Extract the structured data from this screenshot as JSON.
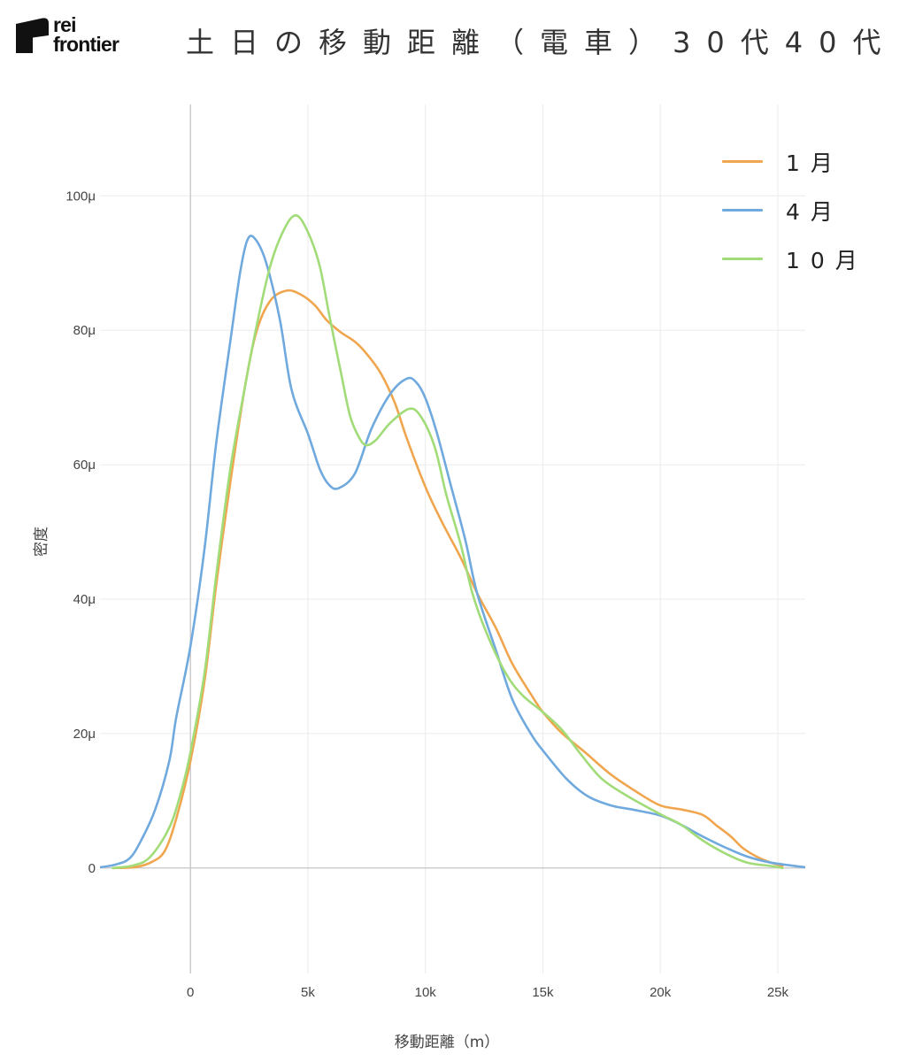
{
  "logo": {
    "line1": "rei",
    "line2": "frontier"
  },
  "chart_data": {
    "type": "line",
    "title": "土日の移動距離（電車）30代40代",
    "xlabel": "移動距離（m）",
    "ylabel": "密度",
    "xlim": [
      -3850,
      26170
    ],
    "ylim": [
      -1.57e-05,
      0.0001136
    ],
    "xticks": {
      "values": [
        0,
        5000,
        10000,
        15000,
        20000,
        25000
      ],
      "labels": [
        "0",
        "5k",
        "10k",
        "15k",
        "20k",
        "25k"
      ]
    },
    "yticks": {
      "values": [
        0,
        2e-05,
        4e-05,
        6e-05,
        8e-05,
        0.0001
      ],
      "labels": [
        "0",
        "20μ",
        "40μ",
        "60μ",
        "80μ",
        "100μ"
      ]
    },
    "grid": true,
    "legend_position": "top-right",
    "series": [
      {
        "name": "1月",
        "color": "#F0A64F",
        "x": [
          -3300,
          -2400,
          -1700,
          -1100,
          -600,
          0,
          600,
          1100,
          1700,
          2300,
          2800,
          3400,
          4100,
          4700,
          5300,
          5800,
          6400,
          7000,
          7500,
          8100,
          8700,
          9200,
          10000,
          10700,
          11500,
          12200,
          13000,
          13700,
          14500,
          15000,
          15800,
          16800,
          17900,
          19000,
          20000,
          20900,
          21800,
          22400,
          23000,
          23500,
          24100,
          24700,
          25200
        ],
        "y": [
          0,
          1e-07,
          8e-07,
          2.5e-06,
          7.4e-06,
          1.59e-05,
          2.78e-05,
          4.22e-05,
          5.74e-05,
          7.12e-05,
          7.97e-05,
          8.44e-05,
          8.59e-05,
          8.53e-05,
          8.37e-05,
          8.15e-05,
          7.97e-05,
          7.83e-05,
          7.65e-05,
          7.36e-05,
          6.92e-05,
          6.4e-05,
          5.67e-05,
          5.15e-05,
          4.62e-05,
          4.09e-05,
          3.57e-05,
          3.04e-05,
          2.58e-05,
          2.32e-05,
          2.01e-05,
          1.72e-05,
          1.39e-05,
          1.13e-05,
          9.3e-06,
          8.7e-06,
          7.9e-06,
          6.3e-06,
          4.7e-06,
          3e-06,
          1.7e-06,
          8e-07,
          3e-07
        ]
      },
      {
        "name": "4月",
        "color": "#6FA9DE",
        "x": [
          -3840,
          -3200,
          -2600,
          -2100,
          -1500,
          -900,
          -600,
          0,
          600,
          1100,
          1700,
          2100,
          2400,
          2700,
          3200,
          3800,
          4300,
          5000,
          5500,
          5900,
          6300,
          7000,
          7700,
          8500,
          9200,
          9600,
          10000,
          10500,
          11100,
          11700,
          12200,
          13000,
          13700,
          14500,
          15000,
          16000,
          16900,
          17900,
          18800,
          20000,
          20900,
          21800,
          22800,
          23700,
          24700,
          26170
        ],
        "y": [
          1e-07,
          5e-07,
          1.4e-06,
          4.1e-06,
          8.7e-06,
          1.59e-05,
          2.25e-05,
          3.3e-05,
          4.75e-05,
          6.33e-05,
          7.84e-05,
          8.83e-05,
          9.32e-05,
          9.38e-05,
          9.03e-05,
          8.17e-05,
          7.12e-05,
          6.46e-05,
          5.94e-05,
          5.7e-05,
          5.65e-05,
          5.87e-05,
          6.53e-05,
          7.05e-05,
          7.28e-05,
          7.23e-05,
          6.99e-05,
          6.46e-05,
          5.67e-05,
          4.88e-05,
          4.09e-05,
          3.24e-05,
          2.51e-05,
          1.99e-05,
          1.75e-05,
          1.33e-05,
          1.07e-05,
          9.3e-06,
          8.7e-06,
          7.8e-06,
          6.4e-06,
          4.7e-06,
          3e-06,
          1.7e-06,
          8e-07,
          1e-07
        ]
      },
      {
        "name": "10月",
        "color": "#A2DC79",
        "x": [
          -3300,
          -2400,
          -1700,
          -900,
          -400,
          0,
          600,
          1100,
          1700,
          2300,
          2800,
          3400,
          4000,
          4500,
          5000,
          5500,
          5900,
          6400,
          6800,
          7200,
          7500,
          7900,
          8500,
          9300,
          9800,
          10400,
          10900,
          11500,
          12000,
          12600,
          13400,
          14100,
          15000,
          15800,
          16600,
          17500,
          18600,
          20000,
          20900,
          21800,
          22800,
          23700,
          24700,
          25200
        ],
        "y": [
          0,
          4e-07,
          1.7e-06,
          6e-06,
          1.13e-05,
          1.72e-05,
          2.9e-05,
          4.36e-05,
          5.94e-05,
          7.12e-05,
          8.04e-05,
          8.96e-05,
          9.51e-05,
          9.71e-05,
          9.46e-05,
          8.96e-05,
          8.24e-05,
          7.38e-05,
          6.72e-05,
          6.39e-05,
          6.29e-05,
          6.37e-05,
          6.62e-05,
          6.83e-05,
          6.72e-05,
          6.26e-05,
          5.54e-05,
          4.82e-05,
          4.09e-05,
          3.5e-05,
          2.91e-05,
          2.58e-05,
          2.32e-05,
          2.06e-05,
          1.7e-05,
          1.33e-05,
          1.07e-05,
          8e-06,
          6.4e-06,
          4.1e-06,
          2.1e-06,
          8e-07,
          3e-07,
          0
        ]
      }
    ]
  }
}
